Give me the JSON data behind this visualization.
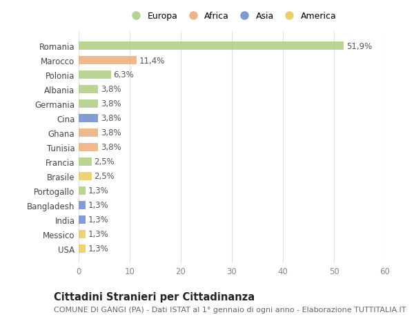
{
  "countries": [
    "Romania",
    "Marocco",
    "Polonia",
    "Albania",
    "Germania",
    "Cina",
    "Ghana",
    "Tunisia",
    "Francia",
    "Brasile",
    "Portogallo",
    "Bangladesh",
    "India",
    "Messico",
    "USA"
  ],
  "values": [
    51.9,
    11.4,
    6.3,
    3.8,
    3.8,
    3.8,
    3.8,
    3.8,
    2.5,
    2.5,
    1.3,
    1.3,
    1.3,
    1.3,
    1.3
  ],
  "labels": [
    "51,9%",
    "11,4%",
    "6,3%",
    "3,8%",
    "3,8%",
    "3,8%",
    "3,8%",
    "3,8%",
    "2,5%",
    "2,5%",
    "1,3%",
    "1,3%",
    "1,3%",
    "1,3%",
    "1,3%"
  ],
  "continents": [
    "Europa",
    "Africa",
    "Europa",
    "Europa",
    "Europa",
    "Asia",
    "Africa",
    "Africa",
    "Europa",
    "America",
    "Europa",
    "Asia",
    "Asia",
    "America",
    "America"
  ],
  "continent_colors": {
    "Europa": "#aacb7d",
    "Africa": "#e8aa78",
    "Asia": "#6688cc",
    "America": "#e8c85a"
  },
  "legend_order": [
    "Europa",
    "Africa",
    "Asia",
    "America"
  ],
  "title": "Cittadini Stranieri per Cittadinanza",
  "subtitle": "COMUNE DI GANGI (PA) - Dati ISTAT al 1° gennaio di ogni anno - Elaborazione TUTTITALIA.IT",
  "xlim": [
    0,
    60
  ],
  "xticks": [
    0,
    10,
    20,
    30,
    40,
    50,
    60
  ],
  "bg_color": "#ffffff",
  "bar_height": 0.55,
  "grid_color": "#e0e0e0",
  "label_fontsize": 8.5,
  "tick_fontsize": 8.5,
  "title_fontsize": 10.5,
  "subtitle_fontsize": 8.0
}
